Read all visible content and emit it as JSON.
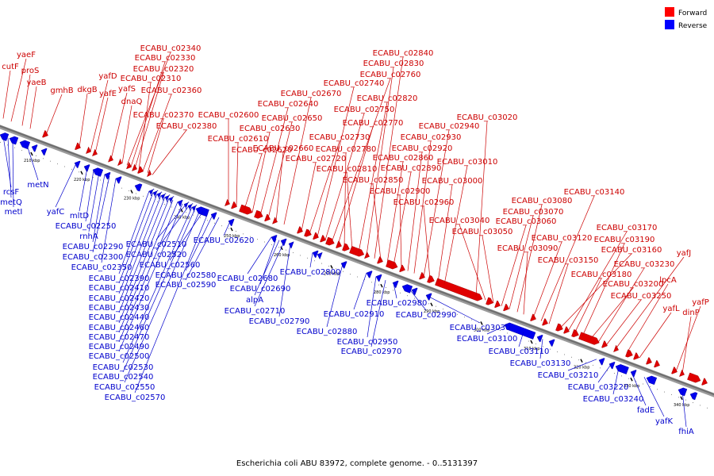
{
  "caption": "Escherichia coli ABU 83972, complete genome. - 0..5131397",
  "legend": [
    {
      "label": "Forward",
      "color": "#ff0000"
    },
    {
      "label": "Reverse",
      "color": "#0000ff"
    }
  ],
  "ticks": [
    "210 kbp",
    "220 kbp",
    "230 kbp",
    "240 kbp",
    "250 kbp",
    "260 kbp",
    "270 kbp",
    "280 kbp",
    "290 kbp",
    "300 kbp",
    "310 kbp",
    "320 kbp",
    "330 kbp",
    "340 kbp",
    "350 kbp",
    "360 kbp"
  ],
  "forward_genes": [
    "cutF",
    "yaeF",
    "proS",
    "yaeB",
    "gmhB",
    "dkgB",
    "yafD",
    "yafE",
    "yafS",
    "dnaQ",
    "ECABU_c02340",
    "ECABU_c02330",
    "ECABU_c02320",
    "ECABU_c02310",
    "ECABU_c02360",
    "ECABU_c02370",
    "ECABU_c02380",
    "ECABU_c02600",
    "ECABU_c02610",
    "ECABU_c02620",
    "ECABU_c02630",
    "ECABU_c02640",
    "ECABU_c02650",
    "ECABU_c02660",
    "ECABU_c02670",
    "ECABU_c02720",
    "ECABU_c02730",
    "ECABU_c02740",
    "ECABU_c02750",
    "ECABU_c02760",
    "ECABU_c02770",
    "ECABU_c02780",
    "ECABU_c02810",
    "ECABU_c02820",
    "ECABU_c02830",
    "ECABU_c02840",
    "ECABU_c02850",
    "ECABU_c02860",
    "ECABU_c02890",
    "ECABU_c02900",
    "ECABU_c02920",
    "ECABU_c02930",
    "ECABU_c02940",
    "ECABU_c02960",
    "ECABU_c03000",
    "ECABU_c03010",
    "ECABU_c03020",
    "ECABU_c03040",
    "ECABU_c03050",
    "ECABU_c03060",
    "ECABU_c03070",
    "ECABU_c03080",
    "ECABU_c03090",
    "ECABU_c03120",
    "ECABU_c03140",
    "ECABU_c03150",
    "ECABU_c03160",
    "ECABU_c03170",
    "ECABU_c03180",
    "ECABU_c03190",
    "ECABU_c03200",
    "ECABU_c03230",
    "ECABU_c03250",
    "yafJ",
    "lpcA",
    "yafL",
    "yafP",
    "dinP"
  ],
  "reverse_genes": [
    "rcsF",
    "metQ",
    "metI",
    "metN",
    "yafC",
    "mltD",
    "ECABU_c02250",
    "rnhA",
    "ECABU_c02290",
    "ECABU_c02300",
    "ECABU_c02350",
    "ECABU_c02390",
    "ECABU_c02410",
    "ECABU_c02420",
    "ECABU_c02430",
    "ECABU_c02440",
    "ECABU_c02460",
    "ECABU_c02470",
    "ECABU_c02490",
    "ECABU_c02500",
    "ECABU_c02510",
    "ECABU_c02520",
    "ECABU_c02530",
    "ECABU_c02540",
    "ECABU_c02550",
    "ECABU_c02560",
    "ECABU_c02570",
    "ECABU_c02580",
    "ECABU_c02590",
    "ECABU_c02620",
    "ECABU_c02680",
    "ECABU_c02690",
    "alpA",
    "ECABU_c02710",
    "ECABU_c02790",
    "ECABU_c02800",
    "ECABU_c02880",
    "ECABU_c02910",
    "ECABU_c02950",
    "ECABU_c02970",
    "ECABU_c02980",
    "ECABU_c02990",
    "ECABU_c03030",
    "ECABU_c03100",
    "ECABU_c03110",
    "ECABU_c03130",
    "ECABU_c03210",
    "ECABU_c03220",
    "ECABU_c03240",
    "fadE",
    "yafK",
    "fhiA"
  ]
}
